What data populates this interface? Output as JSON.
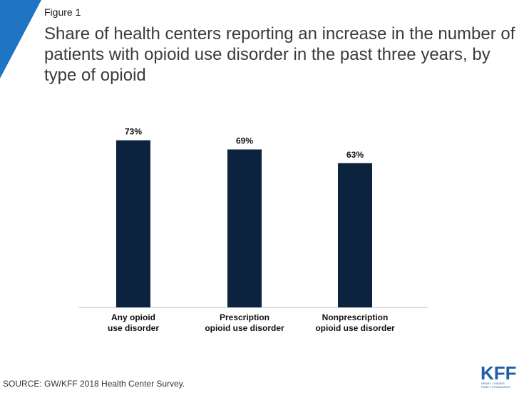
{
  "figure_label": "Figure 1",
  "title": "Share of health centers reporting an increase in the number of patients with opioid use disorder in the past three years, by type of opioid",
  "source": "SOURCE: GW/KFF 2018 Health Center Survey.",
  "logo": {
    "text": "KFF",
    "subtext_1": "HENRY J KAISER",
    "subtext_2": "FAMILY FOUNDATION"
  },
  "colors": {
    "bar": "#0c2340",
    "accent": "#1f74c4"
  },
  "chart_data": {
    "type": "bar",
    "categories": [
      [
        "Any opioid",
        "use disorder"
      ],
      [
        "Prescription",
        "opioid use disorder"
      ],
      [
        "Nonprescription",
        "opioid use disorder"
      ]
    ],
    "values": [
      73,
      69,
      63
    ],
    "value_labels": [
      "73%",
      "69%",
      "63%"
    ],
    "title": "Share of health centers reporting an increase in the number of patients with opioid use disorder in the past three years, by type of opioid",
    "xlabel": "",
    "ylabel": "",
    "ylim": [
      0,
      100
    ],
    "grid": false,
    "legend": "none"
  }
}
